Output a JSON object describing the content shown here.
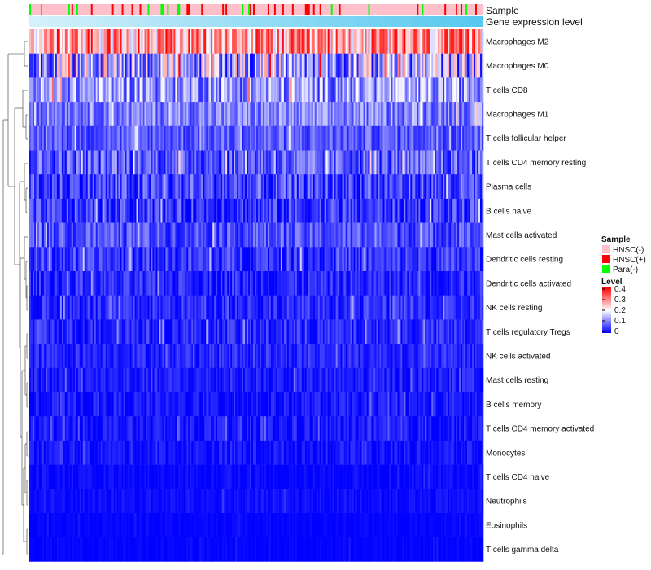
{
  "chart_data": {
    "type": "heatmap",
    "title": "",
    "rows": [
      {
        "name": "Macrophages M2",
        "mean": 0.27,
        "spread": 0.12
      },
      {
        "name": "Macrophages M0",
        "mean": 0.14,
        "spread": 0.14
      },
      {
        "name": "T cells CD8",
        "mean": 0.12,
        "spread": 0.09
      },
      {
        "name": "Macrophages M1",
        "mean": 0.1,
        "spread": 0.06
      },
      {
        "name": "T cells follicular helper",
        "mean": 0.07,
        "spread": 0.05
      },
      {
        "name": "T cells CD4 memory resting",
        "mean": 0.07,
        "spread": 0.07
      },
      {
        "name": "Plasma cells",
        "mean": 0.05,
        "spread": 0.07
      },
      {
        "name": "B cells naive",
        "mean": 0.04,
        "spread": 0.06
      },
      {
        "name": "Mast cells activated",
        "mean": 0.06,
        "spread": 0.05
      },
      {
        "name": "Dendritic cells resting",
        "mean": 0.04,
        "spread": 0.05
      },
      {
        "name": "Dendritic cells activated",
        "mean": 0.03,
        "spread": 0.04
      },
      {
        "name": "NK cells resting",
        "mean": 0.03,
        "spread": 0.04
      },
      {
        "name": "T cells regulatory  Tregs",
        "mean": 0.03,
        "spread": 0.04
      },
      {
        "name": "NK cells activated",
        "mean": 0.03,
        "spread": 0.03
      },
      {
        "name": "Mast cells resting",
        "mean": 0.02,
        "spread": 0.03
      },
      {
        "name": "B cells memory",
        "mean": 0.015,
        "spread": 0.03
      },
      {
        "name": "T cells CD4 memory activated",
        "mean": 0.015,
        "spread": 0.03
      },
      {
        "name": "Monocytes",
        "mean": 0.015,
        "spread": 0.025
      },
      {
        "name": "T cells CD4 naive",
        "mean": 0.005,
        "spread": 0.015
      },
      {
        "name": "Neutrophils",
        "mean": 0.01,
        "spread": 0.015
      },
      {
        "name": "Eosinophils",
        "mean": 0.003,
        "spread": 0.008
      },
      {
        "name": "T cells gamma delta",
        "mean": 0.002,
        "spread": 0.008
      }
    ],
    "n_samples": 280,
    "annotations": [
      {
        "label": "Sample"
      },
      {
        "label": "Gene expression level"
      }
    ],
    "sample_legend": {
      "title": "Sample",
      "entries": [
        {
          "label": "HNSC(-)",
          "color": "#FFC0CB"
        },
        {
          "label": "HNSC(+)",
          "color": "#FF0000"
        },
        {
          "label": "Para(-)",
          "color": "#00FF00"
        }
      ],
      "fractions": [
        0.86,
        0.08,
        0.06
      ]
    },
    "gene_expression_bar": {
      "color_from": "#D6F1FB",
      "color_to": "#55C8EE"
    },
    "level_legend": {
      "title": "Level",
      "ticks": [
        "0.4",
        "0.3",
        "0.2",
        "0.1",
        "0"
      ],
      "range": [
        0,
        0.4
      ],
      "colors": {
        "low": "#0000FF",
        "mid": "#FFFFFF",
        "high": "#FF0000"
      }
    },
    "legend_position": "right"
  }
}
